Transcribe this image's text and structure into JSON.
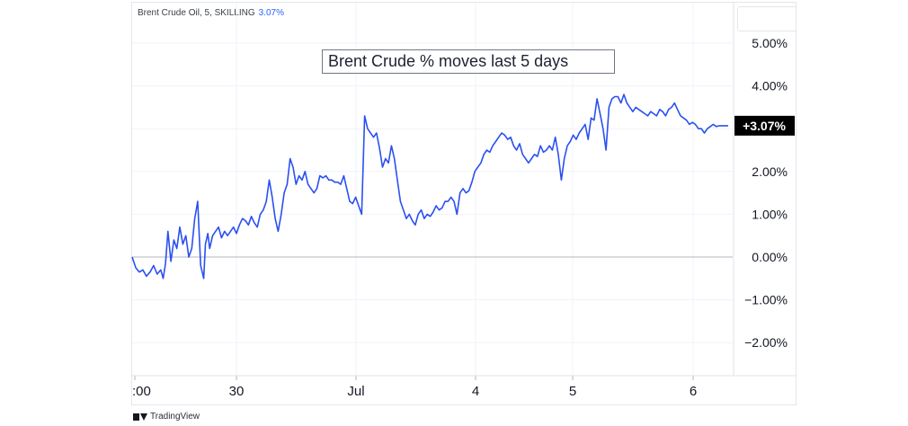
{
  "header": {
    "symbol": "Brent Crude Oil, 5, SKILLING",
    "change": "3.07%"
  },
  "footer": {
    "brand": "TradingView",
    "logo_icon": "tradingview-logo-icon"
  },
  "chart_data": {
    "type": "line",
    "title": "Brent Crude % moves last 5 days",
    "xlabel": "",
    "ylabel": "",
    "x_ticks": [
      ":00",
      "30",
      "Jul",
      "4",
      "5",
      "6"
    ],
    "y_ticks": [
      "5.00%",
      "4.00%",
      "3.00%",
      "2.00%",
      "1.00%",
      "0.00%",
      "−1.00%",
      "−2.00%"
    ],
    "ylim": [
      -2.7,
      5.9
    ],
    "xlim": [
      0,
      100
    ],
    "grid": true,
    "zero_line": true,
    "last_value_label": "+3.07%",
    "series": [
      {
        "color": "#2b50f0",
        "x": [
          0,
          0.6,
          1.2,
          1.8,
          2.4,
          3.0,
          3.6,
          4.2,
          4.8,
          5.2,
          5.6,
          6.0,
          6.5,
          7.0,
          7.5,
          8.0,
          8.5,
          9.0,
          9.5,
          10.0,
          10.5,
          11.0,
          11.5,
          12.0,
          12.3,
          12.7,
          13.0,
          13.5,
          14.0,
          14.5,
          15.0,
          15.5,
          16.0,
          16.5,
          17.0,
          17.5,
          18.0,
          18.5,
          19.0,
          19.5,
          20.0,
          20.5,
          21.0,
          21.5,
          22.0,
          22.5,
          23.0,
          23.5,
          24.0,
          24.5,
          25.0,
          25.5,
          26.0,
          26.5,
          27.0,
          27.5,
          28.0,
          28.5,
          29.0,
          29.5,
          30.0,
          30.5,
          31.0,
          31.5,
          32.0,
          32.5,
          33.0,
          33.5,
          34.0,
          34.5,
          35.0,
          35.5,
          36.0,
          36.5,
          37.0,
          37.5,
          38.0,
          38.5,
          39.0,
          39.5,
          40.0,
          40.5,
          41.0,
          41.5,
          42.0,
          42.5,
          43.0,
          43.5,
          44.0,
          44.5,
          45.0,
          45.5,
          46.0,
          46.5,
          47.0,
          47.5,
          48.0,
          48.5,
          49.0,
          49.5,
          50.0,
          50.5,
          51.0,
          51.5,
          52.0,
          52.5,
          53.0,
          53.5,
          54.0,
          54.5,
          55.0,
          55.5,
          56.0,
          56.5,
          57.0,
          57.5,
          58.0,
          58.5,
          59.0,
          59.5,
          60.0,
          60.5,
          61.0,
          61.5,
          62.0,
          62.5,
          63.0,
          63.5,
          64.0,
          64.5,
          65.0,
          65.5,
          66.0,
          66.5,
          67.0,
          67.5,
          68.0,
          68.5,
          69.0,
          69.5,
          70.0,
          70.5,
          71.0,
          71.5,
          72.0,
          72.5,
          73.0,
          73.5,
          74.0,
          74.5,
          75.0,
          75.5,
          76.0,
          76.5,
          77.0,
          77.5,
          78.0,
          78.5,
          79.0,
          79.5,
          80.0,
          80.5,
          81.0,
          81.5,
          82.0,
          82.5,
          83.0,
          83.5,
          84.0,
          84.5,
          85.0,
          85.5,
          86.0,
          86.5,
          87.0,
          87.5,
          88.0,
          88.5,
          89.0,
          89.5,
          90.0,
          90.5,
          91.0,
          91.5,
          92.0,
          92.5,
          93.0,
          93.5,
          94.0,
          94.5,
          95.0,
          95.5,
          96.0,
          96.5,
          97.0,
          97.5,
          98.0,
          98.5,
          99.0,
          99.5,
          100.0
        ],
        "values": [
          0.0,
          -0.25,
          -0.35,
          -0.3,
          -0.45,
          -0.35,
          -0.2,
          -0.4,
          -0.3,
          -0.5,
          -0.15,
          0.6,
          -0.1,
          0.4,
          0.2,
          0.7,
          0.3,
          0.5,
          0.0,
          0.2,
          0.9,
          1.3,
          -0.2,
          -0.5,
          0.3,
          0.55,
          0.2,
          0.5,
          0.6,
          0.7,
          0.45,
          0.6,
          0.5,
          0.6,
          0.7,
          0.55,
          0.75,
          0.9,
          0.85,
          0.75,
          0.95,
          0.8,
          0.7,
          1.0,
          1.1,
          1.3,
          1.8,
          1.4,
          0.9,
          0.6,
          1.0,
          1.5,
          1.7,
          2.3,
          2.1,
          1.7,
          1.9,
          1.8,
          2.0,
          1.7,
          1.6,
          1.5,
          1.6,
          1.9,
          1.85,
          1.9,
          1.8,
          1.8,
          1.75,
          1.75,
          1.7,
          1.9,
          1.6,
          1.3,
          1.25,
          1.4,
          1.2,
          1.0,
          3.3,
          3.0,
          2.9,
          2.8,
          2.9,
          2.55,
          2.1,
          2.3,
          2.2,
          2.6,
          2.3,
          1.8,
          1.3,
          1.1,
          0.9,
          1.0,
          0.85,
          0.75,
          1.0,
          1.1,
          0.9,
          1.0,
          0.95,
          1.05,
          1.2,
          1.1,
          1.15,
          1.3,
          1.3,
          1.4,
          1.3,
          1.0,
          1.5,
          1.6,
          1.5,
          1.55,
          1.75,
          2.0,
          2.1,
          2.2,
          2.4,
          2.5,
          2.45,
          2.6,
          2.7,
          2.8,
          2.9,
          2.85,
          2.75,
          2.8,
          2.6,
          2.5,
          2.65,
          2.4,
          2.3,
          2.2,
          2.3,
          2.4,
          2.35,
          2.6,
          2.45,
          2.5,
          2.6,
          2.5,
          2.8,
          2.4,
          1.8,
          2.3,
          2.6,
          2.7,
          2.85,
          2.75,
          2.9,
          3.0,
          3.1,
          2.75,
          3.25,
          3.2,
          3.7,
          3.35,
          3.0,
          2.5,
          3.5,
          3.7,
          3.75,
          3.75,
          3.6,
          3.8,
          3.6,
          3.5,
          3.4,
          3.5,
          3.45,
          3.4,
          3.35,
          3.3,
          3.4,
          3.35,
          3.3,
          3.45,
          3.4,
          3.3,
          3.45,
          3.5,
          3.6,
          3.45,
          3.3,
          3.25,
          3.2,
          3.1,
          3.15,
          3.1,
          3.0,
          3.0,
          2.9,
          3.0,
          3.05,
          3.1,
          3.05,
          3.07,
          3.07,
          3.07,
          3.07
        ]
      }
    ]
  }
}
